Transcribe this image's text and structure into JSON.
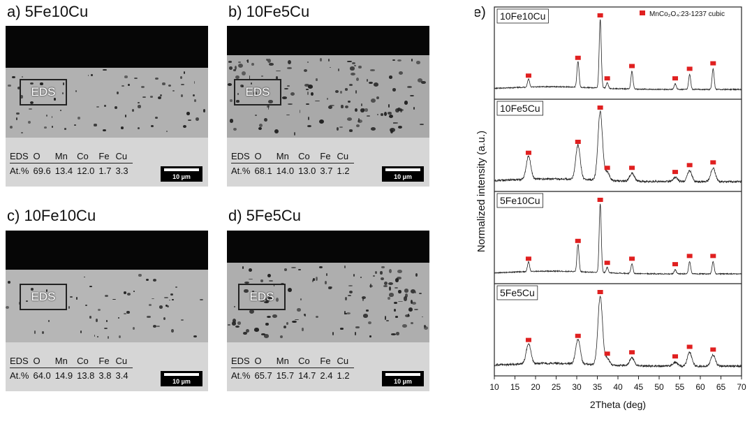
{
  "panels": [
    {
      "label": "a) 5Fe10Cu",
      "eds_box": "EDS",
      "eds": {
        "headers": [
          "EDS",
          "O",
          "Mn",
          "Co",
          "Fe",
          "Cu"
        ],
        "values": [
          "At.%",
          "69.6",
          "13.4",
          "12.0",
          "1.7",
          "3.3"
        ]
      },
      "scale": "10 µm"
    },
    {
      "label": "b) 10Fe5Cu",
      "eds_box": "EDS",
      "eds": {
        "headers": [
          "EDS",
          "O",
          "Mn",
          "Co",
          "Fe",
          "Cu"
        ],
        "values": [
          "At.%",
          "68.1",
          "14.0",
          "13.0",
          "3.7",
          "1.2"
        ]
      },
      "scale": "10 µm"
    },
    {
      "label": "c) 10Fe10Cu",
      "eds_box": "EDS",
      "eds": {
        "headers": [
          "EDS",
          "O",
          "Mn",
          "Co",
          "Fe",
          "Cu"
        ],
        "values": [
          "At.%",
          "64.0",
          "14.9",
          "13.8",
          "3.8",
          "3.4"
        ]
      },
      "scale": "10 µm"
    },
    {
      "label": "d) 5Fe5Cu",
      "eds_box": "EDS",
      "eds": {
        "headers": [
          "EDS",
          "O",
          "Mn",
          "Co",
          "Fe",
          "Cu"
        ],
        "values": [
          "At.%",
          "65.7",
          "15.7",
          "14.7",
          "2.4",
          "1.2"
        ]
      },
      "scale": "10 µm"
    }
  ],
  "chart_data": {
    "type": "line",
    "panel_label": "e)",
    "xlabel": "2Theta (deg)",
    "ylabel": "Normalized intensity (a.u.)",
    "xlim": [
      10,
      70
    ],
    "xticks": [
      10,
      15,
      20,
      25,
      30,
      35,
      40,
      45,
      50,
      55,
      60,
      65,
      70
    ],
    "legend": {
      "label": "MnCo₂O₄:23-1237 cubic",
      "color": "#e02020",
      "position": "top-right"
    },
    "reference_peaks": [
      18.3,
      30.3,
      35.7,
      37.4,
      43.4,
      53.9,
      57.4,
      63.1
    ],
    "series": [
      {
        "name": "10Fe10Cu",
        "peak_heights": [
          0.12,
          0.38,
          1.0,
          0.08,
          0.26,
          0.08,
          0.22,
          0.3
        ],
        "peak_width": 0.25,
        "noise": 0.015
      },
      {
        "name": "10Fe5Cu",
        "peak_heights": [
          0.34,
          0.5,
          1.0,
          0.12,
          0.12,
          0.06,
          0.16,
          0.2
        ],
        "peak_width": 0.55,
        "noise": 0.03
      },
      {
        "name": "5Fe10Cu",
        "peak_heights": [
          0.14,
          0.4,
          1.0,
          0.08,
          0.14,
          0.06,
          0.18,
          0.18
        ],
        "peak_width": 0.25,
        "noise": 0.015
      },
      {
        "name": "5Fe5Cu",
        "peak_heights": [
          0.3,
          0.36,
          1.0,
          0.1,
          0.12,
          0.06,
          0.2,
          0.16
        ],
        "peak_width": 0.55,
        "noise": 0.03
      }
    ]
  }
}
